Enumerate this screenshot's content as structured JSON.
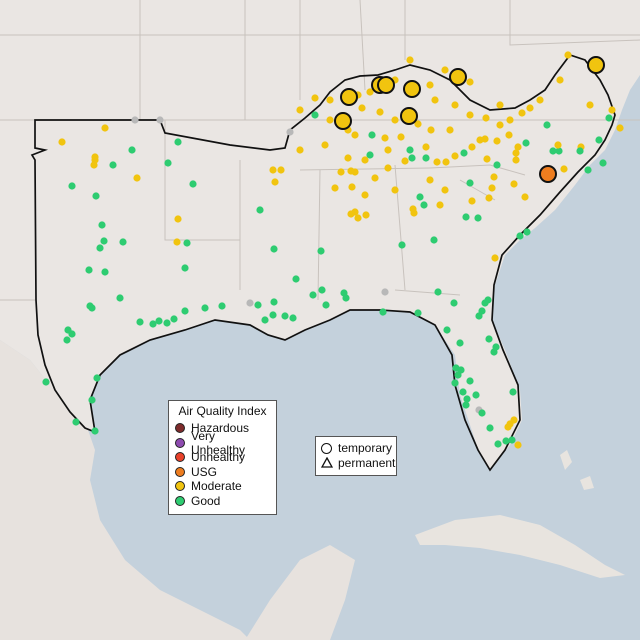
{
  "legend": {
    "title": "Air Quality Index",
    "categories": [
      {
        "label": "Hazardous",
        "color": "#7e2b2b"
      },
      {
        "label": "Very Unhealthy",
        "color": "#8e4bb0"
      },
      {
        "label": "Unhealthy",
        "color": "#e8412a"
      },
      {
        "label": "USG",
        "color": "#ee7d1f"
      },
      {
        "label": "Moderate",
        "color": "#f1c40f"
      },
      {
        "label": "Good",
        "color": "#2ecc71"
      }
    ]
  },
  "monitor_types": {
    "temporary_label": "temporary",
    "permanent_label": "permanent"
  },
  "colors": {
    "no_data": "#b8b8b8",
    "ocean": "#c4d1dc",
    "land": "#eae6e3",
    "border": "#111111"
  },
  "map_data": {
    "region_outlined": "Southeastern United States",
    "temporary_monitors": [
      {
        "category": "Moderate",
        "count": 8
      },
      {
        "category": "USG",
        "count": 1
      }
    ]
  }
}
